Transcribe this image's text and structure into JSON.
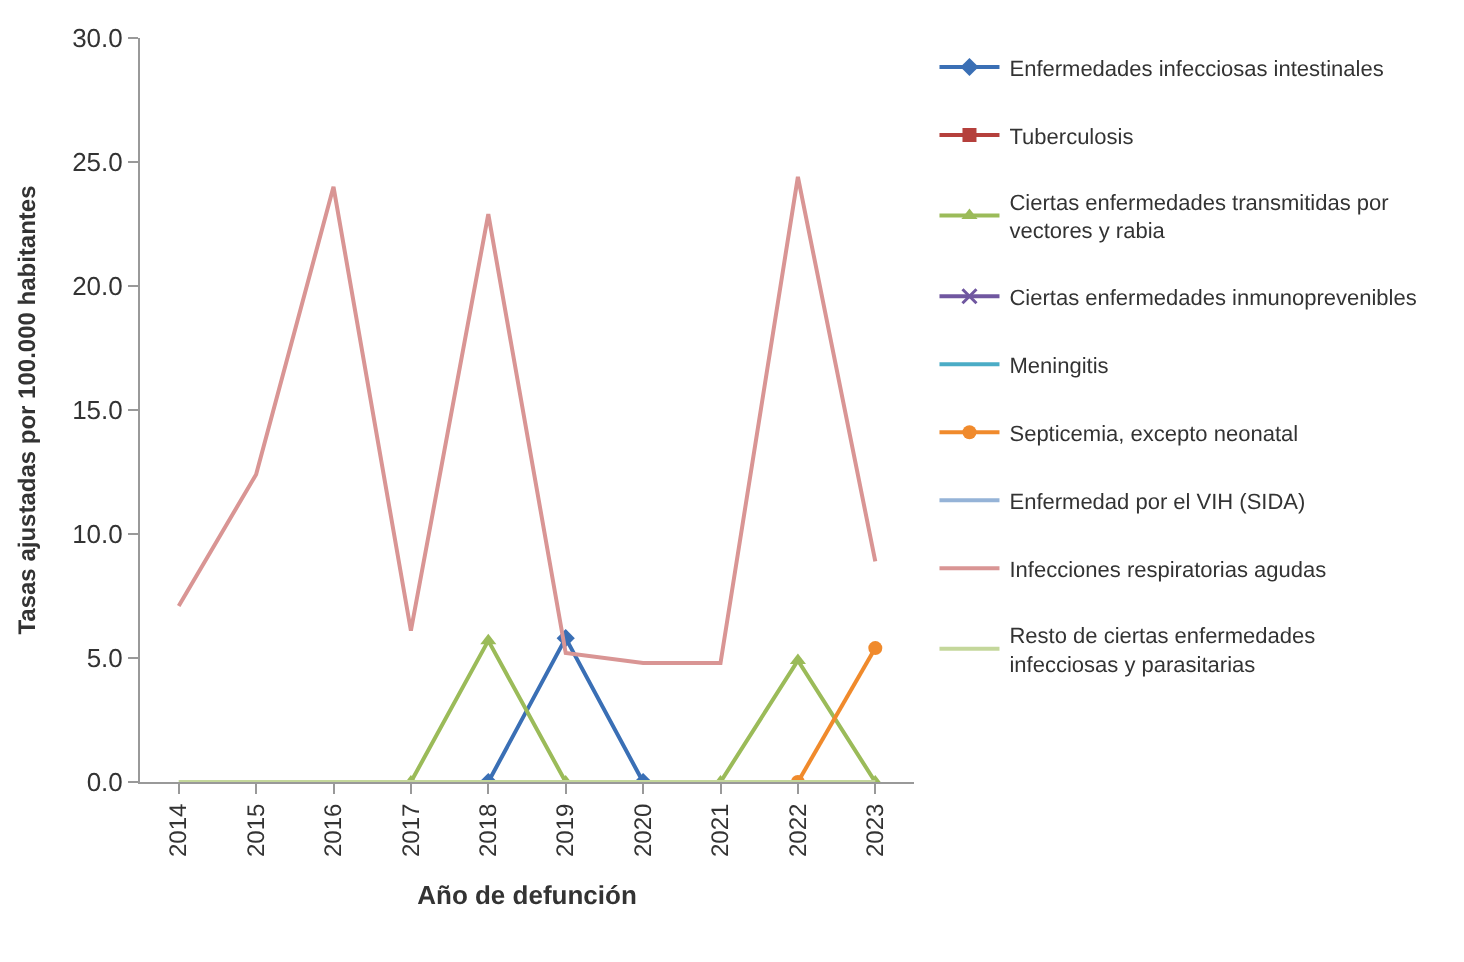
{
  "chart_data": {
    "type": "line",
    "xlabel": "Año de defunción",
    "ylabel": "Tasas ajustadas por 100.000 habitantes",
    "categories": [
      "2014",
      "2015",
      "2016",
      "2017",
      "2018",
      "2019",
      "2020",
      "2021",
      "2022",
      "2023"
    ],
    "series": [
      {
        "name": "Enfermedades infecciosas intestinales",
        "color": "#3a6fb5",
        "marker": "diamond",
        "values": [
          null,
          null,
          null,
          null,
          0,
          5.8,
          0,
          null,
          null,
          null
        ]
      },
      {
        "name": "Tuberculosis",
        "color": "#b5403c",
        "marker": "square",
        "values": [
          null,
          null,
          null,
          null,
          null,
          null,
          null,
          null,
          null,
          null
        ]
      },
      {
        "name": "Ciertas enfermedades transmitidas por vectores y rabia",
        "color": "#9bbb59",
        "marker": "triangle",
        "values": [
          null,
          null,
          null,
          0,
          5.7,
          0,
          null,
          0,
          4.9,
          0
        ]
      },
      {
        "name": "Ciertas enfermedades inmunoprevenibles",
        "color": "#7057a0",
        "marker": "cross",
        "values": [
          null,
          null,
          null,
          null,
          null,
          null,
          null,
          null,
          null,
          null
        ]
      },
      {
        "name": "Meningitis",
        "color": "#4bacc6",
        "marker": "none",
        "values": [
          null,
          null,
          null,
          null,
          null,
          null,
          null,
          null,
          null,
          null
        ]
      },
      {
        "name": "Septicemia, excepto neonatal",
        "color": "#f08a2c",
        "marker": "circle",
        "values": [
          null,
          null,
          null,
          null,
          null,
          null,
          null,
          null,
          0,
          5.4
        ]
      },
      {
        "name": "Enfermedad por el VIH (SIDA)",
        "color": "#95b3d7",
        "marker": "none",
        "values": [
          null,
          null,
          null,
          null,
          null,
          null,
          null,
          null,
          null,
          null
        ]
      },
      {
        "name": "Infecciones respiratorias agudas",
        "color": "#d99594",
        "marker": "none",
        "values": [
          7.1,
          12.4,
          24.0,
          6.1,
          22.9,
          5.2,
          4.8,
          4.8,
          24.4,
          8.9
        ]
      },
      {
        "name": "Resto de ciertas enfermedades infecciosas y parasitarias",
        "color": "#c4d79b",
        "marker": "none",
        "values": [
          0,
          0,
          0,
          0,
          0,
          0,
          0,
          0,
          0,
          0
        ]
      }
    ],
    "ylim": [
      0,
      30
    ],
    "yticks": [
      {
        "value": 0,
        "label": "0.0"
      },
      {
        "value": 5,
        "label": "5.0"
      },
      {
        "value": 10,
        "label": "10.0"
      },
      {
        "value": 15,
        "label": "15.0"
      },
      {
        "value": 20,
        "label": "20.0"
      },
      {
        "value": 25,
        "label": "25.0"
      },
      {
        "value": 30,
        "label": "30.0"
      }
    ],
    "legend": "right"
  }
}
